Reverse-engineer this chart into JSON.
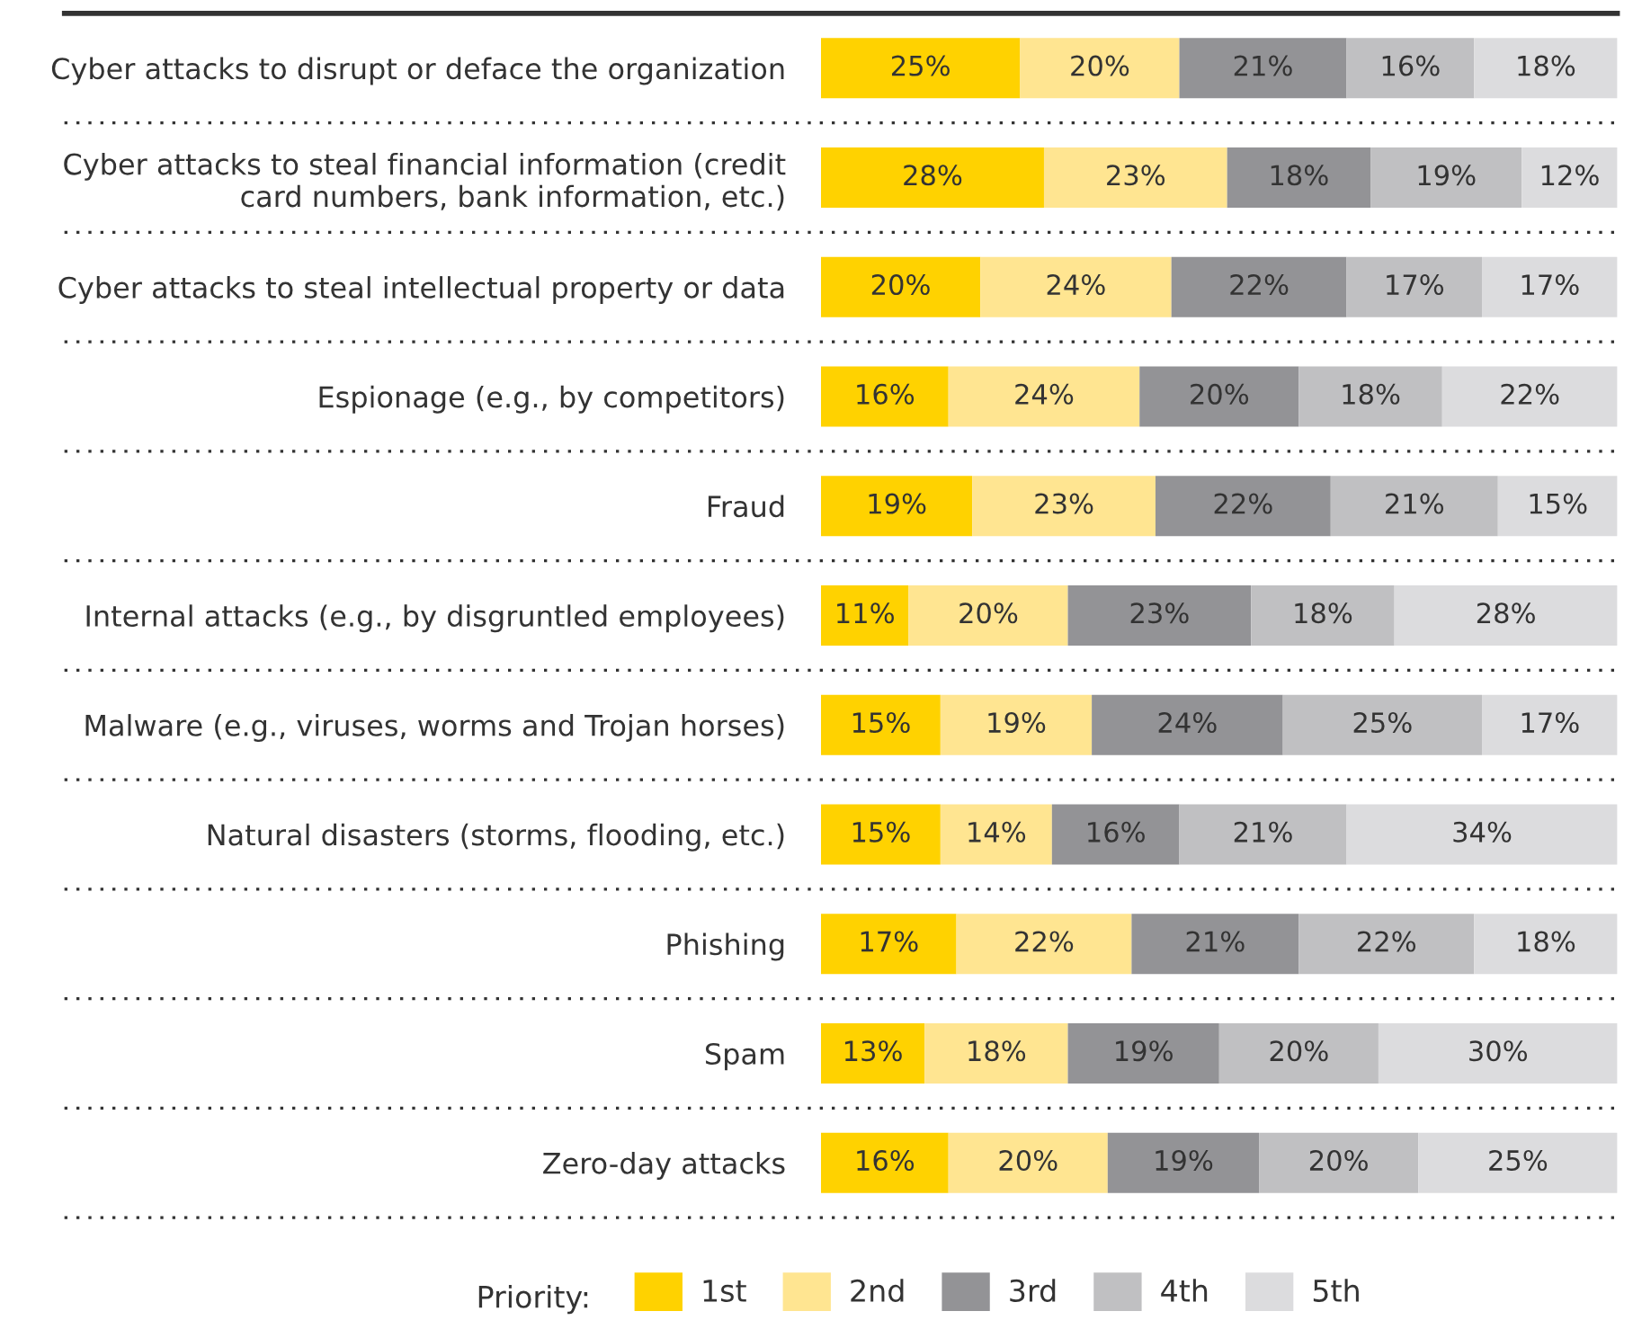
{
  "chart_data": {
    "type": "bar",
    "orientation": "horizontal",
    "stacked": true,
    "legend": "bottom",
    "legend_title": "Priority:",
    "tick_labels": "y",
    "xlim": [
      0,
      100
    ],
    "categories": [
      "Cyber attacks to disrupt or deface the organization",
      "Cyber attacks to steal financial information (credit\ncard numbers, bank information, etc.)",
      "Cyber attacks to steal intellectual property or data",
      "Espionage (e.g., by competitors)",
      "Fraud",
      "Internal attacks (e.g., by disgruntled employees)",
      "Malware (e.g., viruses, worms and Trojan horses)",
      "Natural disasters (storms, flooding, etc.)",
      "Phishing",
      "Spam",
      "Zero-day attacks"
    ],
    "series": [
      {
        "name": "1st",
        "color": "#ffd200",
        "values": [
          25,
          28,
          20,
          16,
          19,
          11,
          15,
          15,
          17,
          13,
          16
        ],
        "value_labels": [
          "25%",
          "28%",
          "20%",
          "16%",
          "19%",
          "11%",
          "15%",
          "15%",
          "17%",
          "13%",
          "16%"
        ]
      },
      {
        "name": "2nd",
        "color": "#ffe591",
        "values": [
          20,
          23,
          24,
          24,
          23,
          20,
          19,
          14,
          22,
          18,
          20
        ],
        "value_labels": [
          "20%",
          "23%",
          "24%",
          "24%",
          "23%",
          "20%",
          "19%",
          "14%",
          "22%",
          "18%",
          "20%"
        ]
      },
      {
        "name": "3rd",
        "color": "#939396",
        "values": [
          21,
          18,
          22,
          20,
          22,
          23,
          24,
          16,
          21,
          19,
          19
        ],
        "value_labels": [
          "21%",
          "18%",
          "22%",
          "20%",
          "22%",
          "23%",
          "24%",
          "16%",
          "21%",
          "19%",
          "19%"
        ]
      },
      {
        "name": "4th",
        "color": "#c0c0c2",
        "values": [
          16,
          19,
          17,
          18,
          21,
          18,
          25,
          21,
          22,
          20,
          20
        ],
        "value_labels": [
          "16%",
          "19%",
          "17%",
          "18%",
          "21%",
          "18%",
          "25%",
          "21%",
          "22%",
          "20%",
          "20%"
        ]
      },
      {
        "name": "5th",
        "color": "#dcdcde",
        "values": [
          18,
          12,
          17,
          22,
          15,
          28,
          17,
          34,
          18,
          30,
          25
        ],
        "value_labels": [
          "18%",
          "12%",
          "17%",
          "22%",
          "15%",
          "28%",
          "17%",
          "34%",
          "18%",
          "30%",
          "25%"
        ]
      }
    ]
  }
}
